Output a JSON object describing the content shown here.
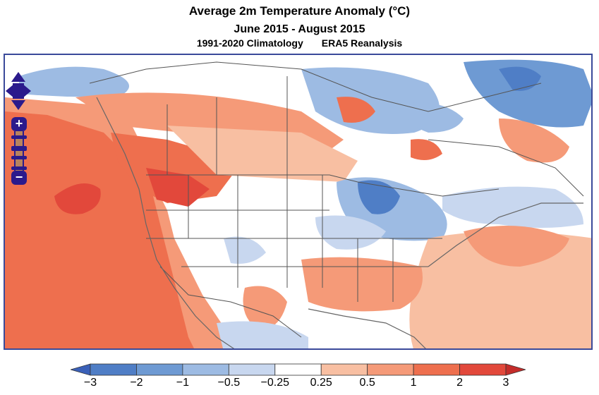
{
  "title": "Average 2m Temperature Anomaly (°C)",
  "period": "June 2015 - August 2015",
  "climatology": "1991-2020 Climatology",
  "dataset": "ERA5 Reanalysis",
  "map_controls": {
    "zoom_in_label": "+",
    "zoom_out_label": "−",
    "zoom_levels": 4,
    "current_zoom_level": 2
  },
  "legend": {
    "tick_labels": [
      "−3",
      "−2",
      "−1",
      "−0.5",
      "−0.25",
      "0.25",
      "0.5",
      "1",
      "2",
      "3"
    ],
    "bins": [
      {
        "range": "< -3",
        "color": "#3a60b8"
      },
      {
        "range": "-3 to -2",
        "color": "#4f7ec6"
      },
      {
        "range": "-2 to -1",
        "color": "#6e9ad3"
      },
      {
        "range": "-1 to -0.5",
        "color": "#9dbbe3"
      },
      {
        "range": "-0.5 to -0.25",
        "color": "#c8d7ef"
      },
      {
        "range": "-0.25 to 0.25",
        "color": "#ffffff"
      },
      {
        "range": "0.25 to 0.5",
        "color": "#f8bfa2"
      },
      {
        "range": "0.5 to 1",
        "color": "#f59a78"
      },
      {
        "range": "1 to 2",
        "color": "#ee6f4e"
      },
      {
        "range": "2 to 3",
        "color": "#e2483b"
      },
      {
        "range": "> 3",
        "color": "#c42c2a"
      }
    ]
  },
  "colors": {
    "frame": "#3a4a9a",
    "borders": "#555555",
    "nav": "#2b1a8c"
  }
}
